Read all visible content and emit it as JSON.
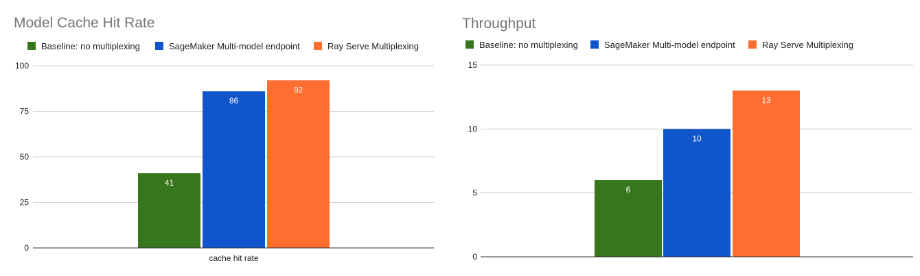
{
  "colors": {
    "series": [
      "#38761d",
      "#1155cc",
      "#ff6d31"
    ],
    "grid": "#cccccc",
    "axis": "#333333",
    "title": "#757575"
  },
  "chart_data": [
    {
      "type": "bar",
      "title": "Model Cache Hit Rate",
      "categories": [
        "cache hit rate"
      ],
      "series": [
        {
          "name": "Baseline: no multiplexing",
          "values": [
            41
          ]
        },
        {
          "name": "SageMaker Multi-model endpoint",
          "values": [
            86
          ]
        },
        {
          "name": "Ray Serve Multiplexing",
          "values": [
            92
          ]
        }
      ],
      "ylim": [
        0,
        100
      ],
      "yticks": [
        0,
        25,
        50,
        75,
        100
      ],
      "legend": "top-left",
      "grid": true,
      "show_category_labels": true
    },
    {
      "type": "bar",
      "title": "Throughput",
      "categories": [
        ""
      ],
      "series": [
        {
          "name": "Baseline: no multiplexing",
          "values": [
            6
          ]
        },
        {
          "name": "SageMaker Multi-model endpoint",
          "values": [
            10
          ]
        },
        {
          "name": "Ray Serve Multiplexing",
          "values": [
            13
          ]
        }
      ],
      "ylim": [
        0,
        15
      ],
      "yticks": [
        0,
        5,
        10,
        15
      ],
      "legend": "top-left",
      "grid": true,
      "show_category_labels": false
    }
  ]
}
